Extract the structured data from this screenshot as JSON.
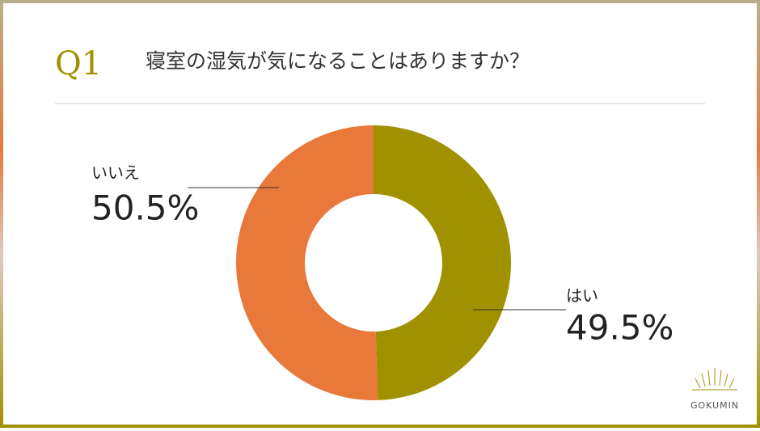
{
  "chart_data": {
    "type": "pie",
    "label": "Q1",
    "title": "寝室の湿気が気になることはありますか？",
    "categories": [
      "はい",
      "いいえ"
    ],
    "values": [
      49.5,
      50.5
    ],
    "value_labels": [
      "49.5%",
      "50.5%"
    ],
    "colors": [
      "#a09100",
      "#e8793a"
    ],
    "logo": "GOKUMIN"
  }
}
